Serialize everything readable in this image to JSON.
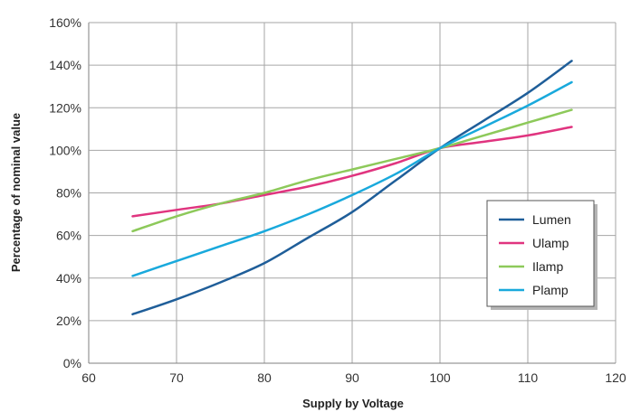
{
  "chart_data": {
    "type": "line",
    "title": "",
    "xlabel": "Supply by Voltage",
    "ylabel": "Percentage of nominal value",
    "xlim": [
      60,
      120
    ],
    "ylim": [
      0,
      160
    ],
    "x_ticks": [
      60,
      70,
      80,
      90,
      100,
      110,
      120
    ],
    "x_tick_labels": [
      "60",
      "70",
      "80",
      "90",
      "100",
      "110",
      "120"
    ],
    "y_ticks": [
      0,
      20,
      40,
      60,
      80,
      100,
      120,
      140,
      160
    ],
    "y_tick_labels": [
      "0%",
      "20%",
      "40%",
      "60%",
      "80%",
      "100%",
      "120%",
      "140%",
      "160%"
    ],
    "grid": true,
    "legend_position": "right",
    "series": [
      {
        "name": "Lumen",
        "color": "#1f5e99",
        "x": [
          65,
          70,
          75,
          80,
          85,
          90,
          95,
          100,
          105,
          110,
          115
        ],
        "values": [
          23,
          30,
          38,
          47,
          59,
          71,
          86,
          101,
          114,
          127,
          142
        ]
      },
      {
        "name": "Ulamp",
        "color": "#e0347f",
        "x": [
          65,
          70,
          75,
          80,
          85,
          90,
          95,
          100,
          105,
          110,
          115
        ],
        "values": [
          69,
          72,
          75,
          79,
          83,
          88,
          94,
          101,
          104,
          107,
          111
        ]
      },
      {
        "name": "Ilamp",
        "color": "#8dc95a",
        "x": [
          65,
          70,
          75,
          80,
          85,
          90,
          95,
          100,
          105,
          110,
          115
        ],
        "values": [
          62,
          69,
          75,
          80,
          86,
          91,
          96,
          101,
          107,
          113,
          119
        ]
      },
      {
        "name": "Plamp",
        "color": "#19a9dc",
        "x": [
          65,
          70,
          75,
          80,
          85,
          90,
          95,
          100,
          105,
          110,
          115
        ],
        "values": [
          41,
          48,
          55,
          62,
          70,
          79,
          89,
          101,
          111,
          121,
          132
        ]
      }
    ]
  }
}
